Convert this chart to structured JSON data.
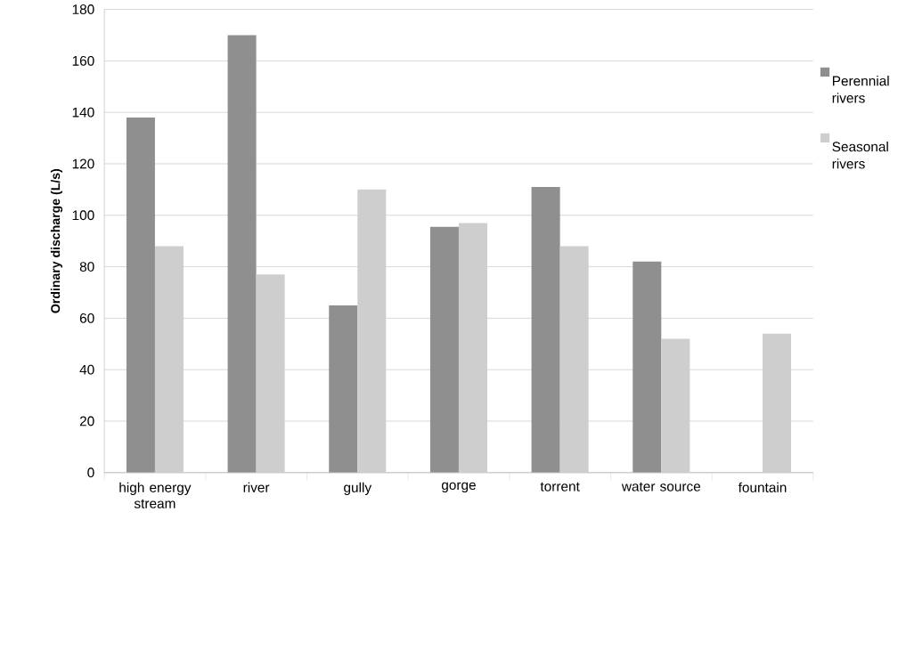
{
  "chart_data": {
    "type": "bar",
    "ylabel": "Ordinary  discharge (L/s)",
    "categories": [
      "high energy stream",
      "river",
      "gully",
      "gorge",
      "torrent",
      "water source",
      "fountain"
    ],
    "series": [
      {
        "name": "Perennial rivers",
        "color": "#8f8f8f",
        "values": [
          138,
          170,
          65,
          95.5,
          111,
          82,
          null
        ]
      },
      {
        "name": "Seasonal rivers",
        "color": "#cecece",
        "values": [
          88,
          77,
          110,
          97,
          88,
          52,
          54
        ]
      }
    ],
    "ylim": [
      0,
      180
    ],
    "yticks": [
      0,
      20,
      40,
      60,
      80,
      100,
      120,
      140,
      160,
      180
    ],
    "grid": "y",
    "legend": "right"
  }
}
